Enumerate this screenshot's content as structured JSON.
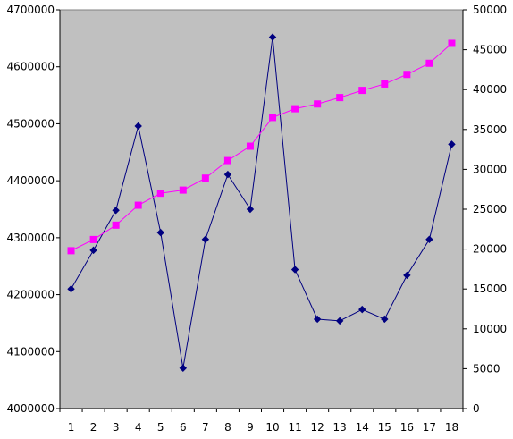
{
  "chart_data": {
    "type": "line",
    "categories": [
      "1",
      "2",
      "3",
      "4",
      "5",
      "6",
      "7",
      "8",
      "9",
      "10",
      "11",
      "12",
      "13",
      "14",
      "15",
      "16",
      "17",
      "18"
    ],
    "y_left": {
      "ylim": [
        4000000,
        4700000
      ],
      "ticks": [
        4000000,
        4100000,
        4200000,
        4300000,
        4400000,
        4500000,
        4600000,
        4700000
      ],
      "tick_labels": [
        "4000000",
        "4100000",
        "4200000",
        "4300000",
        "4400000",
        "4500000",
        "4600000",
        "4700000"
      ]
    },
    "y_right": {
      "ylim": [
        0,
        50000
      ],
      "ticks": [
        0,
        5000,
        10000,
        15000,
        20000,
        25000,
        30000,
        35000,
        40000,
        45000,
        50000
      ],
      "tick_labels": [
        "0",
        "5000",
        "10000",
        "15000",
        "20000",
        "25000",
        "30000",
        "35000",
        "40000",
        "45000",
        "50000"
      ]
    },
    "series": [
      {
        "axis": "left",
        "color": "#000080",
        "marker": "diamond",
        "values": [
          4210000,
          4278000,
          4348000,
          4496000,
          4309000,
          4071000,
          4297000,
          4411000,
          4350000,
          4652000,
          4244000,
          4157000,
          4154000,
          4174000,
          4157000,
          4234000,
          4297000,
          4464000
        ]
      },
      {
        "axis": "right",
        "color": "#FF00FF",
        "marker": "square",
        "values": [
          19800,
          21200,
          23000,
          25500,
          27000,
          27400,
          28900,
          31100,
          32900,
          36500,
          37600,
          38200,
          39000,
          39900,
          40700,
          41900,
          43300,
          45800
        ]
      }
    ],
    "plot_background": "#C0C0C0",
    "grid": false,
    "legend": false
  }
}
